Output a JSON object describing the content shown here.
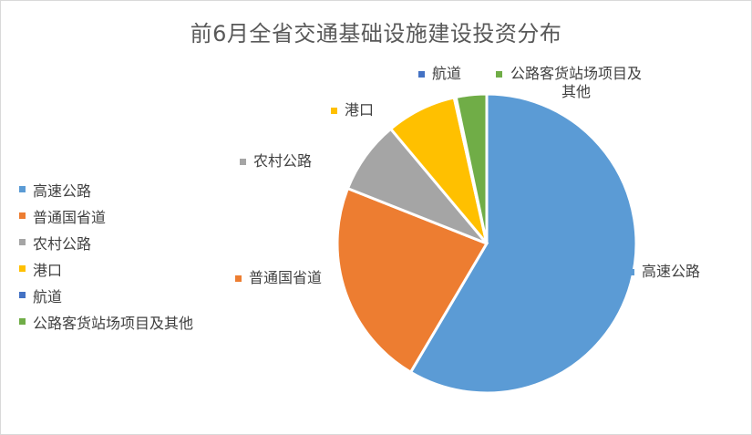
{
  "chart_data": {
    "type": "pie",
    "title": "前6月全省交通基础设施建设投资分布",
    "legend_position": "left",
    "categories": [
      "高速公路",
      "普通国省道",
      "农村公路",
      "港口",
      "航道",
      "公路客货站场项目及其他"
    ],
    "values": [
      58.5,
      22.5,
      7.9,
      7.6,
      0.2,
      3.3
    ],
    "colors": [
      "#5b9bd5",
      "#ed7d31",
      "#a5a5a5",
      "#ffc000",
      "#4472c4",
      "#70ad47"
    ],
    "data_labels": [
      "高速公路",
      "普通国省道",
      "农村公路",
      "港口",
      "航道",
      "公路客货站场项目及其他"
    ]
  }
}
